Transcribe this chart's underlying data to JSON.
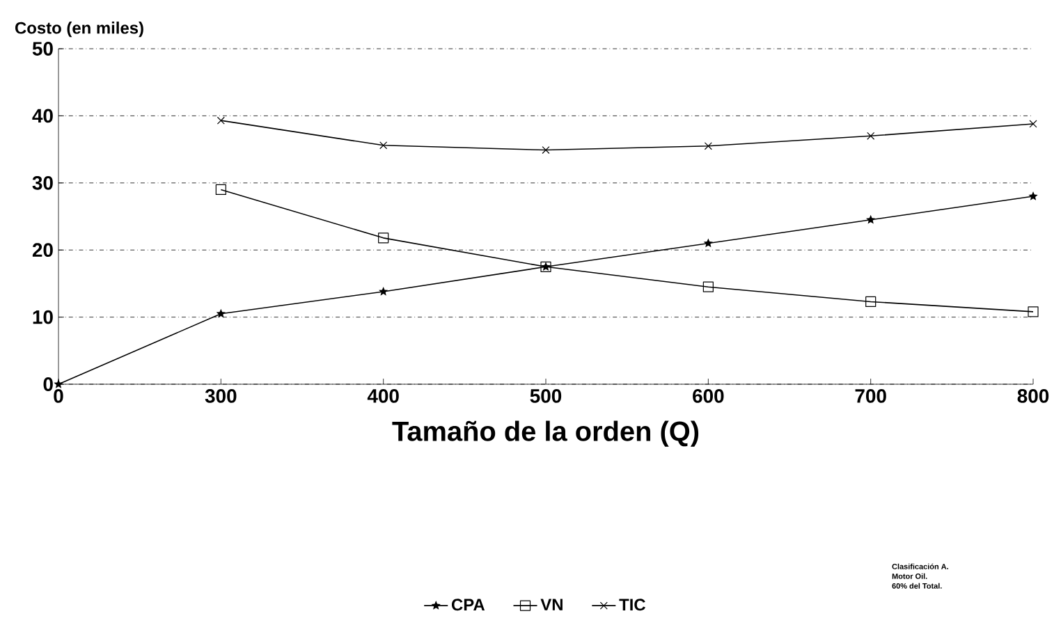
{
  "chart_data": {
    "type": "line",
    "ylabel": "Costo (en miles)",
    "xlabel": "Tamaño de la orden (Q)",
    "categories": [
      "0",
      "300",
      "400",
      "500",
      "600",
      "700",
      "800"
    ],
    "series": [
      {
        "name": "CPA",
        "color": "#000000",
        "marker": "star",
        "values": [
          0,
          10.5,
          13.8,
          17.5,
          21,
          24.5,
          28
        ]
      },
      {
        "name": "VN",
        "color": "#000000",
        "marker": "square",
        "values": [
          null,
          29,
          21.8,
          17.5,
          14.5,
          12.3,
          10.8
        ]
      },
      {
        "name": "TIC",
        "color": "#000000",
        "marker": "cross",
        "values": [
          null,
          39.3,
          35.6,
          34.9,
          35.5,
          37,
          38.8
        ]
      }
    ],
    "ylim": [
      0,
      50
    ],
    "yticks": [
      0,
      10,
      20,
      30,
      40,
      50
    ],
    "grid": "y",
    "legend": "bottom",
    "line_style": "solid",
    "annotations": [
      "Clasificación A.",
      "Motor Oil.",
      "60% del Total."
    ]
  }
}
